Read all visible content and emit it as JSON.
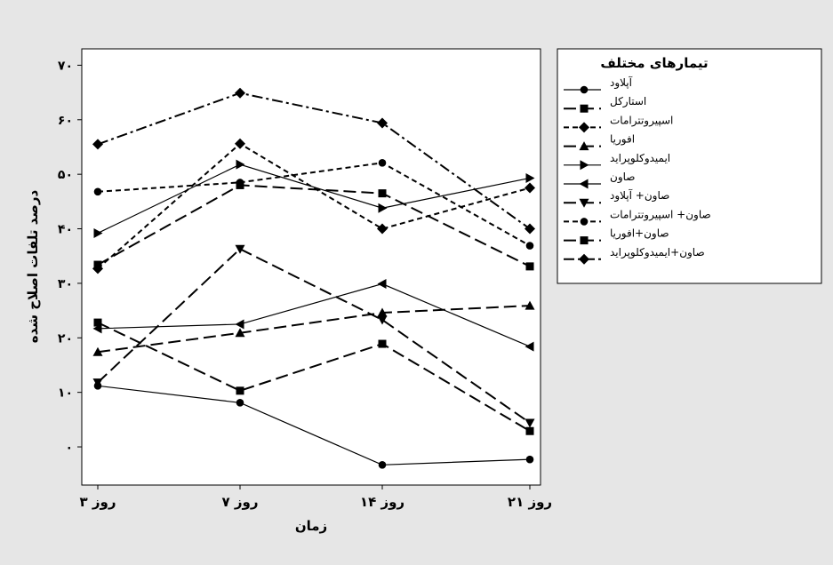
{
  "chart_data": {
    "type": "line",
    "title": "",
    "xlabel": "زمان",
    "ylabel": "درصد تلفات اصلاح شده",
    "categories": [
      "۳ روز",
      "۷ روز",
      "۱۴ روز",
      "۲۱ روز"
    ],
    "ylim": [
      -7,
      73
    ],
    "yticks": [
      0,
      10,
      20,
      30,
      40,
      50,
      60,
      70
    ],
    "ytick_labels": [
      "۰",
      "۱۰",
      "۲۰",
      "۳۰",
      "۴۰",
      "۵۰",
      "۶۰",
      "۷۰"
    ],
    "legend": {
      "title": "تیمارهای مختلف",
      "position": "right"
    },
    "grid": false,
    "series": [
      {
        "name": "آپلاود",
        "marker": "circle",
        "dash": "solid",
        "values": [
          11.2,
          8.1,
          -3.3,
          -2.3
        ]
      },
      {
        "name": "استارکل",
        "marker": "square",
        "dash": "longdash",
        "values": [
          22.8,
          10.3,
          18.9,
          2.9
        ]
      },
      {
        "name": "اسپیروتترامات",
        "marker": "diamond",
        "dash": "shortdash",
        "values": [
          32.7,
          55.6,
          40.0,
          47.5
        ]
      },
      {
        "name": "افوریا",
        "marker": "triangle-up",
        "dash": "longdash",
        "values": [
          17.4,
          20.9,
          24.6,
          25.9
        ]
      },
      {
        "name": "ایمیدوکلوپراید",
        "marker": "triangle-right",
        "dash": "solid",
        "values": [
          39.2,
          51.8,
          43.8,
          49.3
        ]
      },
      {
        "name": "صاون",
        "marker": "triangle-left",
        "dash": "solid",
        "values": [
          21.7,
          22.5,
          29.9,
          18.4
        ]
      },
      {
        "name": "صاون+ آپلاود",
        "marker": "triangle-down",
        "dash": "longdash",
        "values": [
          11.8,
          36.3,
          23.3,
          4.4
        ]
      },
      {
        "name": "صاون+ اسپیروتترامات",
        "marker": "circle",
        "dash": "shortdash",
        "values": [
          46.8,
          48.5,
          52.1,
          36.9
        ]
      },
      {
        "name": "صاون+افوریا",
        "marker": "square",
        "dash": "longdash",
        "values": [
          33.4,
          48.0,
          46.5,
          33.1
        ]
      },
      {
        "name": "صاون+ایمیدوکلوپراید",
        "marker": "diamond",
        "dash": "dashdot",
        "values": [
          55.5,
          64.9,
          59.4,
          40.0
        ]
      }
    ]
  }
}
